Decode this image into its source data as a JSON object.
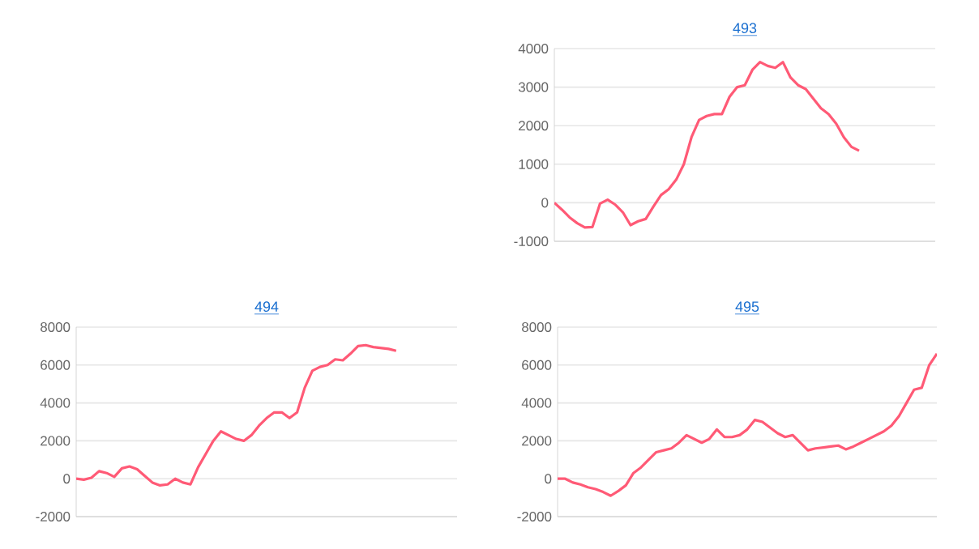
{
  "chart_data": [
    {
      "type": "line",
      "title": "493",
      "color": "#ff5a76",
      "grid": "y",
      "tick_labels": "y",
      "ylim": [
        -1000,
        4000
      ],
      "yticks": [
        -1000,
        0,
        1000,
        2000,
        3000,
        4000
      ],
      "categories": [
        null,
        null,
        null,
        null,
        null,
        null,
        null,
        null,
        null,
        null,
        null,
        null,
        null,
        null,
        null,
        null,
        null,
        null,
        null,
        null,
        null,
        null,
        null,
        null,
        null,
        null,
        null,
        null,
        null,
        null,
        null,
        null,
        null,
        null,
        null,
        null,
        null,
        null,
        null,
        null,
        null,
        null,
        null,
        null,
        null,
        null,
        null,
        null,
        null,
        null,
        null
      ],
      "values": [
        0,
        -180,
        -380,
        -530,
        -640,
        -630,
        -20,
        80,
        -50,
        -250,
        -580,
        -480,
        -420,
        -100,
        200,
        350,
        600,
        1000,
        1700,
        2150,
        2250,
        2300,
        2300,
        2750,
        3000,
        3050,
        3450,
        3650,
        3550,
        3500,
        3650,
        3250,
        3050,
        2950,
        2700,
        2450,
        2300,
        2050,
        1700,
        1450,
        1350,
        null,
        null,
        null,
        null,
        null,
        null,
        null,
        null,
        null,
        null
      ]
    },
    {
      "type": "line",
      "title": "494",
      "color": "#ff5a76",
      "grid": "y",
      "tick_labels": "y",
      "ylim": [
        -2000,
        8000
      ],
      "yticks": [
        -2000,
        0,
        2000,
        4000,
        6000,
        8000
      ],
      "categories": [
        null,
        null,
        null,
        null,
        null,
        null,
        null,
        null,
        null,
        null,
        null,
        null,
        null,
        null,
        null,
        null,
        null,
        null,
        null,
        null,
        null,
        null,
        null,
        null,
        null,
        null,
        null,
        null,
        null,
        null,
        null,
        null,
        null,
        null,
        null,
        null,
        null,
        null,
        null,
        null,
        null,
        null,
        null,
        null,
        null,
        null,
        null,
        null,
        null,
        null,
        null
      ],
      "values": [
        0,
        -50,
        50,
        400,
        300,
        100,
        550,
        650,
        500,
        150,
        -200,
        -350,
        -300,
        0,
        -200,
        -300,
        600,
        1300,
        2000,
        2500,
        2300,
        2100,
        2000,
        2300,
        2800,
        3200,
        3500,
        3500,
        3200,
        3500,
        4800,
        5700,
        5900,
        6000,
        6300,
        6250,
        6600,
        7000,
        7050,
        6950,
        6900,
        6850,
        6750,
        null,
        null,
        null,
        null,
        null,
        null,
        null,
        null
      ]
    },
    {
      "type": "line",
      "title": "495",
      "color": "#ff5a76",
      "grid": "y",
      "tick_labels": "y",
      "ylim": [
        -2000,
        8000
      ],
      "yticks": [
        -2000,
        0,
        2000,
        4000,
        6000,
        8000
      ],
      "categories": [
        null,
        null,
        null,
        null,
        null,
        null,
        null,
        null,
        null,
        null,
        null,
        null,
        null,
        null,
        null,
        null,
        null,
        null,
        null,
        null,
        null,
        null,
        null,
        null,
        null,
        null,
        null,
        null,
        null,
        null,
        null,
        null,
        null,
        null,
        null,
        null,
        null,
        null,
        null,
        null,
        null,
        null,
        null,
        null,
        null,
        null,
        null,
        null,
        null,
        null,
        null
      ],
      "values": [
        0,
        0,
        -200,
        -300,
        -450,
        -550,
        -700,
        -900,
        -650,
        -350,
        300,
        600,
        1000,
        1400,
        1500,
        1600,
        1900,
        2300,
        2100,
        1900,
        2100,
        2600,
        2200,
        2200,
        2300,
        2600,
        3100,
        3000,
        2700,
        2400,
        2200,
        2300,
        1900,
        1500,
        1600,
        1650,
        1700,
        1750,
        1550,
        1700,
        1900,
        2100,
        2300,
        2500,
        2800,
        3300,
        4000,
        4700,
        4800,
        6000,
        6600
      ]
    }
  ]
}
